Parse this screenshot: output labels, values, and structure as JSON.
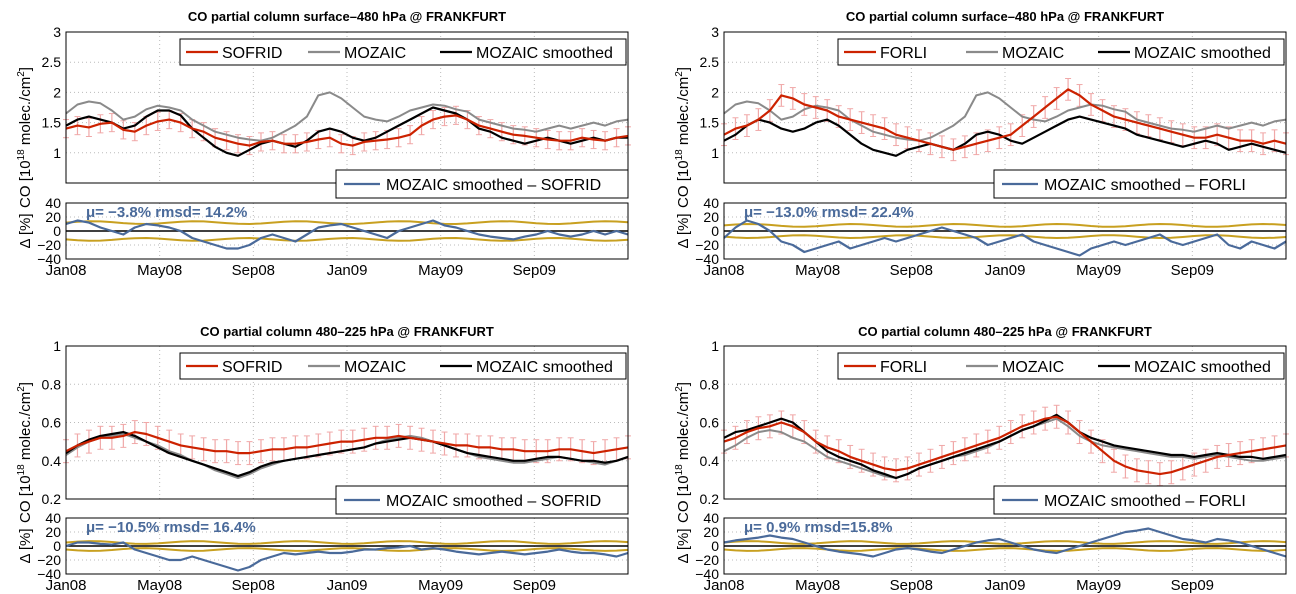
{
  "chart_data": [
    {
      "type": "line",
      "title": "CO partial column surface–480 hPa @ FRANKFURT",
      "ylabel_parts": [
        "CO [10",
        "18",
        " molec./cm",
        "2",
        "]"
      ],
      "ylim": [
        0.5,
        3
      ],
      "yticks": [
        "1",
        "1.5",
        "2",
        "2.5",
        "3"
      ],
      "x_ticks": [
        "Jan08",
        "May08",
        "Sep08",
        "Jan09",
        "May09",
        "Sep09"
      ],
      "legend": [
        "SOFRID",
        "MOZAIC",
        "MOZAIC smoothed"
      ],
      "series": [
        {
          "name": "SOFRID",
          "color": "#cc2200",
          "values": [
            1.4,
            1.45,
            1.42,
            1.48,
            1.5,
            1.38,
            1.35,
            1.45,
            1.52,
            1.55,
            1.5,
            1.4,
            1.35,
            1.25,
            1.2,
            1.15,
            1.12,
            1.18,
            1.2,
            1.15,
            1.15,
            1.18,
            1.22,
            1.25,
            1.15,
            1.12,
            1.18,
            1.2,
            1.22,
            1.25,
            1.3,
            1.45,
            1.55,
            1.6,
            1.62,
            1.55,
            1.45,
            1.4,
            1.35,
            1.3,
            1.28,
            1.25,
            1.22,
            1.2,
            1.2,
            1.25,
            1.22,
            1.2,
            1.25,
            1.28
          ]
        },
        {
          "name": "MOZAIC",
          "color": "#8a8a8a",
          "values": [
            1.65,
            1.8,
            1.85,
            1.82,
            1.7,
            1.55,
            1.6,
            1.72,
            1.78,
            1.75,
            1.7,
            1.55,
            1.45,
            1.35,
            1.3,
            1.25,
            1.22,
            1.2,
            1.25,
            1.35,
            1.45,
            1.6,
            1.95,
            2.0,
            1.9,
            1.75,
            1.6,
            1.55,
            1.52,
            1.6,
            1.7,
            1.75,
            1.8,
            1.78,
            1.72,
            1.68,
            1.55,
            1.5,
            1.45,
            1.4,
            1.38,
            1.35,
            1.4,
            1.45,
            1.4,
            1.45,
            1.5,
            1.45,
            1.52,
            1.55
          ]
        },
        {
          "name": "MOZAIC smoothed",
          "color": "#000000",
          "values": [
            1.45,
            1.55,
            1.6,
            1.55,
            1.5,
            1.4,
            1.45,
            1.6,
            1.7,
            1.7,
            1.62,
            1.4,
            1.25,
            1.1,
            1.0,
            0.95,
            1.05,
            1.15,
            1.2,
            1.15,
            1.1,
            1.2,
            1.35,
            1.4,
            1.35,
            1.25,
            1.2,
            1.25,
            1.35,
            1.45,
            1.55,
            1.65,
            1.75,
            1.7,
            1.65,
            1.55,
            1.4,
            1.35,
            1.25,
            1.2,
            1.15,
            1.2,
            1.25,
            1.2,
            1.15,
            1.2,
            1.25,
            1.2,
            1.25,
            1.25
          ]
        }
      ],
      "error_color": "#f0a8a8",
      "error_halfwidth": 0.15,
      "diff": {
        "legend": "MOZAIC smoothed – SOFRID",
        "stats": "μ= −3.8%  rmsd= 14.2%",
        "ylim": [
          -40,
          40
        ],
        "yticks": [
          "−40",
          "−20",
          "0",
          "20",
          "40"
        ],
        "ylabel": "Δ [%]",
        "color": "#4a6a9a",
        "band_color": "#c8a020",
        "band": 12,
        "values": [
          10,
          15,
          12,
          5,
          0,
          -5,
          5,
          10,
          8,
          5,
          0,
          -10,
          -15,
          -20,
          -25,
          -25,
          -20,
          -10,
          -5,
          -10,
          -15,
          -5,
          5,
          8,
          10,
          5,
          0,
          -5,
          -10,
          0,
          5,
          10,
          15,
          8,
          5,
          0,
          -5,
          -8,
          -10,
          -12,
          -8,
          -5,
          0,
          -5,
          -8,
          -5,
          0,
          -5,
          0,
          -5
        ]
      }
    },
    {
      "type": "line",
      "title": "CO partial column surface–480 hPa @ FRANKFURT",
      "ylabel_parts": [
        "CO [10",
        "18",
        " molec./cm",
        "2",
        "]"
      ],
      "ylim": [
        0.5,
        3
      ],
      "yticks": [
        "1",
        "1.5",
        "2",
        "2.5",
        "3"
      ],
      "x_ticks": [
        "Jan08",
        "May08",
        "Sep08",
        "Jan09",
        "May09",
        "Sep09"
      ],
      "legend": [
        "FORLI",
        "MOZAIC",
        "MOZAIC smoothed"
      ],
      "series": [
        {
          "name": "FORLI",
          "color": "#cc2200",
          "values": [
            1.3,
            1.4,
            1.45,
            1.55,
            1.7,
            1.95,
            1.9,
            1.8,
            1.75,
            1.7,
            1.6,
            1.55,
            1.5,
            1.45,
            1.4,
            1.3,
            1.25,
            1.2,
            1.15,
            1.1,
            1.05,
            1.1,
            1.15,
            1.2,
            1.25,
            1.3,
            1.45,
            1.6,
            1.75,
            1.9,
            2.05,
            1.95,
            1.8,
            1.7,
            1.6,
            1.55,
            1.5,
            1.45,
            1.4,
            1.35,
            1.3,
            1.25,
            1.25,
            1.3,
            1.25,
            1.2,
            1.2,
            1.15,
            1.2,
            1.15
          ]
        },
        {
          "name": "MOZAIC",
          "color": "#8a8a8a",
          "values": [
            1.65,
            1.8,
            1.85,
            1.82,
            1.7,
            1.55,
            1.6,
            1.72,
            1.78,
            1.75,
            1.7,
            1.55,
            1.45,
            1.35,
            1.3,
            1.25,
            1.22,
            1.2,
            1.25,
            1.35,
            1.45,
            1.6,
            1.95,
            2.0,
            1.9,
            1.75,
            1.6,
            1.55,
            1.52,
            1.6,
            1.7,
            1.75,
            1.8,
            1.78,
            1.72,
            1.68,
            1.55,
            1.5,
            1.45,
            1.4,
            1.38,
            1.35,
            1.4,
            1.45,
            1.4,
            1.45,
            1.5,
            1.45,
            1.52,
            1.55
          ]
        },
        {
          "name": "MOZAIC smoothed",
          "color": "#000000",
          "values": [
            1.2,
            1.3,
            1.45,
            1.55,
            1.5,
            1.4,
            1.35,
            1.4,
            1.5,
            1.55,
            1.45,
            1.3,
            1.15,
            1.05,
            1.0,
            0.95,
            1.05,
            1.1,
            1.15,
            1.1,
            1.05,
            1.15,
            1.3,
            1.35,
            1.3,
            1.2,
            1.15,
            1.25,
            1.35,
            1.45,
            1.55,
            1.6,
            1.55,
            1.5,
            1.45,
            1.4,
            1.3,
            1.25,
            1.2,
            1.15,
            1.1,
            1.15,
            1.2,
            1.15,
            1.05,
            1.1,
            1.15,
            1.1,
            1.05,
            1.0
          ]
        }
      ],
      "error_color": "#f0a8a8",
      "error_halfwidth": 0.18,
      "diff": {
        "legend": "MOZAIC smoothed – FORLI",
        "stats": "μ= −13.0%  rmsd= 22.4%",
        "ylim": [
          -40,
          40
        ],
        "yticks": [
          "−40",
          "−20",
          "0",
          "20",
          "40"
        ],
        "ylabel": "Δ [%]",
        "color": "#4a6a9a",
        "band_color": "#c8a020",
        "band": 8,
        "values": [
          -10,
          5,
          15,
          10,
          0,
          -15,
          -20,
          -30,
          -25,
          -20,
          -15,
          -25,
          -20,
          -15,
          -10,
          -15,
          -10,
          -5,
          0,
          5,
          0,
          -5,
          -10,
          -20,
          -15,
          -10,
          -5,
          -15,
          -20,
          -25,
          -30,
          -35,
          -25,
          -20,
          -15,
          -20,
          -15,
          -10,
          -5,
          -15,
          -20,
          -15,
          -10,
          -5,
          -20,
          -25,
          -15,
          -20,
          -25,
          -15
        ]
      }
    },
    {
      "type": "line",
      "title": "CO partial column 480–225 hPa @ FRANKFURT",
      "ylabel_parts": [
        "CO [10",
        "18",
        " molec./cm",
        "2",
        "]"
      ],
      "ylim": [
        0.2,
        1
      ],
      "yticks": [
        "0.2",
        "0.4",
        "0.6",
        "0.8",
        "1"
      ],
      "x_ticks": [
        "Jan08",
        "May08",
        "Sep08",
        "Jan09",
        "May09",
        "Sep09"
      ],
      "legend": [
        "SOFRID",
        "MOZAIC",
        "MOZAIC smoothed"
      ],
      "series": [
        {
          "name": "SOFRID",
          "color": "#cc2200",
          "values": [
            0.45,
            0.48,
            0.5,
            0.52,
            0.52,
            0.53,
            0.55,
            0.54,
            0.52,
            0.5,
            0.48,
            0.47,
            0.46,
            0.45,
            0.45,
            0.44,
            0.44,
            0.45,
            0.46,
            0.46,
            0.47,
            0.47,
            0.48,
            0.49,
            0.5,
            0.5,
            0.51,
            0.52,
            0.52,
            0.53,
            0.52,
            0.51,
            0.5,
            0.49,
            0.48,
            0.48,
            0.47,
            0.47,
            0.46,
            0.46,
            0.45,
            0.45,
            0.45,
            0.46,
            0.46,
            0.45,
            0.44,
            0.45,
            0.46,
            0.47
          ]
        },
        {
          "name": "MOZAIC",
          "color": "#8a8a8a",
          "values": [
            0.43,
            0.47,
            0.5,
            0.52,
            0.53,
            0.54,
            0.52,
            0.5,
            0.48,
            0.45,
            0.43,
            0.4,
            0.38,
            0.35,
            0.33,
            0.31,
            0.33,
            0.36,
            0.38,
            0.4,
            0.41,
            0.42,
            0.43,
            0.44,
            0.45,
            0.46,
            0.47,
            0.49,
            0.51,
            0.52,
            0.53,
            0.52,
            0.5,
            0.48,
            0.46,
            0.44,
            0.42,
            0.41,
            0.4,
            0.39,
            0.39,
            0.4,
            0.41,
            0.42,
            0.41,
            0.4,
            0.39,
            0.38,
            0.4,
            0.42
          ]
        },
        {
          "name": "MOZAIC smoothed",
          "color": "#000000",
          "values": [
            0.44,
            0.48,
            0.51,
            0.53,
            0.54,
            0.55,
            0.53,
            0.5,
            0.47,
            0.44,
            0.42,
            0.4,
            0.38,
            0.36,
            0.34,
            0.32,
            0.34,
            0.37,
            0.39,
            0.4,
            0.41,
            0.42,
            0.43,
            0.44,
            0.45,
            0.46,
            0.47,
            0.49,
            0.5,
            0.51,
            0.52,
            0.51,
            0.5,
            0.48,
            0.46,
            0.44,
            0.43,
            0.42,
            0.41,
            0.4,
            0.4,
            0.41,
            0.42,
            0.42,
            0.41,
            0.4,
            0.4,
            0.39,
            0.4,
            0.42
          ]
        }
      ],
      "error_color": "#f0a8a8",
      "error_halfwidth": 0.06,
      "diff": {
        "legend": "MOZAIC smoothed – SOFRID",
        "stats": "μ= −10.5%  rmsd= 16.4%",
        "ylim": [
          -40,
          40
        ],
        "yticks": [
          "−40",
          "−20",
          "0",
          "20",
          "40"
        ],
        "ylabel": "Δ [%]",
        "color": "#4a6a9a",
        "band_color": "#c8a020",
        "band": 5,
        "values": [
          0,
          5,
          5,
          3,
          2,
          5,
          -5,
          -10,
          -15,
          -20,
          -20,
          -15,
          -20,
          -25,
          -30,
          -35,
          -30,
          -20,
          -15,
          -10,
          -12,
          -10,
          -8,
          -10,
          -10,
          -8,
          -5,
          -5,
          -3,
          -2,
          0,
          -5,
          -3,
          -5,
          -8,
          -10,
          -12,
          -10,
          -8,
          -10,
          -12,
          -10,
          -8,
          -5,
          -8,
          -10,
          -10,
          -12,
          -15,
          -10
        ]
      }
    },
    {
      "type": "line",
      "title": "CO partial column 480–225 hPa @ FRANKFURT",
      "ylabel_parts": [
        "CO [10",
        "18",
        " molec./cm",
        "2",
        "]"
      ],
      "ylim": [
        0.2,
        1
      ],
      "yticks": [
        "0.2",
        "0.4",
        "0.6",
        "0.8",
        "1"
      ],
      "x_ticks": [
        "Jan08",
        "May08",
        "Sep08",
        "Jan09",
        "May09",
        "Sep09"
      ],
      "legend": [
        "FORLI",
        "MOZAIC",
        "MOZAIC smoothed"
      ],
      "series": [
        {
          "name": "FORLI",
          "color": "#cc2200",
          "values": [
            0.5,
            0.52,
            0.55,
            0.57,
            0.58,
            0.6,
            0.58,
            0.55,
            0.5,
            0.47,
            0.45,
            0.42,
            0.4,
            0.38,
            0.36,
            0.35,
            0.36,
            0.38,
            0.4,
            0.42,
            0.44,
            0.46,
            0.48,
            0.5,
            0.52,
            0.55,
            0.58,
            0.6,
            0.62,
            0.63,
            0.6,
            0.55,
            0.5,
            0.45,
            0.4,
            0.37,
            0.35,
            0.34,
            0.33,
            0.34,
            0.36,
            0.38,
            0.4,
            0.42,
            0.43,
            0.44,
            0.45,
            0.46,
            0.47,
            0.48
          ]
        },
        {
          "name": "MOZAIC",
          "color": "#8a8a8a",
          "values": [
            0.45,
            0.48,
            0.52,
            0.55,
            0.56,
            0.55,
            0.52,
            0.5,
            0.46,
            0.42,
            0.4,
            0.38,
            0.36,
            0.34,
            0.32,
            0.31,
            0.33,
            0.36,
            0.38,
            0.4,
            0.42,
            0.43,
            0.45,
            0.47,
            0.5,
            0.53,
            0.56,
            0.58,
            0.6,
            0.62,
            0.58,
            0.53,
            0.5,
            0.48,
            0.47,
            0.46,
            0.45,
            0.44,
            0.43,
            0.42,
            0.42,
            0.41,
            0.42,
            0.43,
            0.42,
            0.41,
            0.4,
            0.4,
            0.41,
            0.42
          ]
        },
        {
          "name": "MOZAIC smoothed",
          "color": "#000000",
          "values": [
            0.52,
            0.55,
            0.56,
            0.58,
            0.6,
            0.62,
            0.6,
            0.55,
            0.5,
            0.45,
            0.42,
            0.4,
            0.38,
            0.35,
            0.33,
            0.31,
            0.33,
            0.36,
            0.38,
            0.4,
            0.42,
            0.44,
            0.46,
            0.48,
            0.5,
            0.53,
            0.56,
            0.58,
            0.61,
            0.64,
            0.6,
            0.55,
            0.52,
            0.5,
            0.48,
            0.47,
            0.46,
            0.45,
            0.44,
            0.43,
            0.43,
            0.42,
            0.43,
            0.44,
            0.43,
            0.42,
            0.42,
            0.41,
            0.42,
            0.43
          ]
        }
      ],
      "error_color": "#f0a8a8",
      "error_halfwidth": 0.06,
      "diff": {
        "legend": "MOZAIC smoothed – FORLI",
        "stats": "μ= 0.9%  rmsd=15.8%",
        "ylim": [
          -40,
          40
        ],
        "yticks": [
          "−40",
          "−20",
          "0",
          "20",
          "40"
        ],
        "ylabel": "Δ [%]",
        "color": "#4a6a9a",
        "band_color": "#c8a020",
        "band": 5,
        "values": [
          5,
          8,
          10,
          12,
          15,
          12,
          10,
          5,
          0,
          -5,
          -8,
          -10,
          -12,
          -15,
          -10,
          -5,
          -3,
          -5,
          -8,
          -10,
          -5,
          0,
          5,
          8,
          10,
          5,
          0,
          -5,
          -8,
          -10,
          -5,
          0,
          5,
          10,
          15,
          20,
          22,
          25,
          20,
          15,
          10,
          8,
          5,
          10,
          8,
          5,
          0,
          -5,
          -10,
          -15
        ]
      }
    }
  ]
}
